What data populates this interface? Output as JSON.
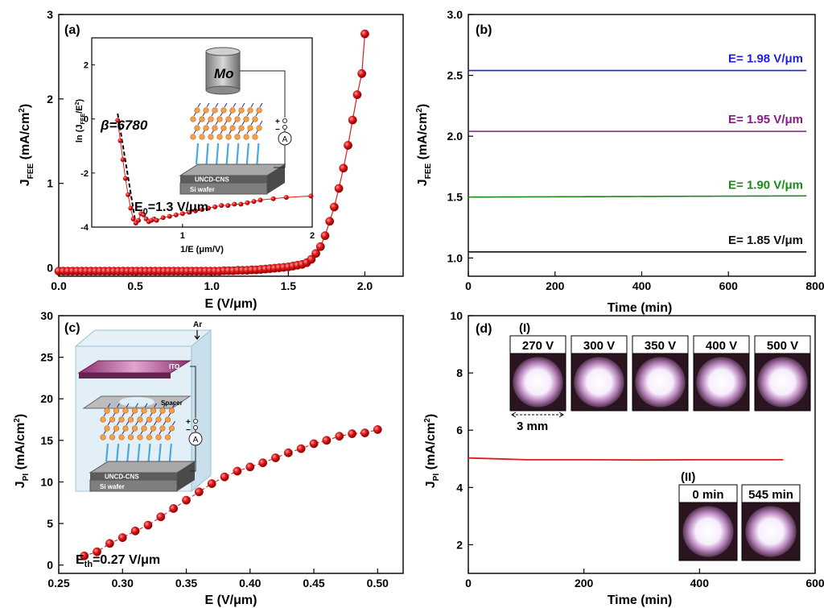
{
  "panel_labels": {
    "a": "(a)",
    "b": "(b)",
    "c": "(c)",
    "d": "(d)"
  },
  "colors": {
    "red": "#e31a1c",
    "blue": "#1f1fd6",
    "purple": "#8a1a8a",
    "green": "#1a8a1a",
    "black": "#111111"
  },
  "chart_data": [
    {
      "type": "scatter",
      "panel": "(a)",
      "xlabel": "E (V/μm)",
      "ylabel_main": "J",
      "ylabel_sub": "FEE",
      "ylabel_unit": " (mA/cm",
      "ylabel_sup": "2",
      "ylabel_end": ")",
      "xlim": [
        0.0,
        2.25
      ],
      "ylim": [
        -0.1,
        3.0
      ],
      "xticks": [
        "0.0",
        "0.5",
        "1.0",
        "1.5",
        "2.0"
      ],
      "yticks": [
        "0",
        "1",
        "2",
        "3"
      ],
      "x": [
        0.0,
        0.03,
        0.06,
        0.09,
        0.12,
        0.15,
        0.18,
        0.21,
        0.24,
        0.27,
        0.3,
        0.33,
        0.36,
        0.39,
        0.42,
        0.45,
        0.48,
        0.51,
        0.54,
        0.57,
        0.6,
        0.63,
        0.66,
        0.69,
        0.72,
        0.75,
        0.78,
        0.81,
        0.84,
        0.87,
        0.9,
        0.93,
        0.96,
        0.99,
        1.02,
        1.05,
        1.08,
        1.11,
        1.14,
        1.17,
        1.2,
        1.23,
        1.26,
        1.29,
        1.32,
        1.35,
        1.38,
        1.41,
        1.44,
        1.47,
        1.5,
        1.53,
        1.56,
        1.59,
        1.62,
        1.65,
        1.68,
        1.71,
        1.74,
        1.77,
        1.8,
        1.83,
        1.86,
        1.89,
        1.92,
        1.95,
        1.98,
        2.0
      ],
      "y": [
        -0.04,
        -0.04,
        -0.04,
        -0.04,
        -0.04,
        -0.04,
        -0.04,
        -0.04,
        -0.04,
        -0.04,
        -0.04,
        -0.04,
        -0.04,
        -0.04,
        -0.04,
        -0.04,
        -0.04,
        -0.04,
        -0.04,
        -0.04,
        -0.04,
        -0.04,
        -0.04,
        -0.04,
        -0.04,
        -0.04,
        -0.04,
        -0.04,
        -0.04,
        -0.04,
        -0.04,
        -0.04,
        -0.04,
        -0.04,
        -0.04,
        -0.04,
        -0.035,
        -0.035,
        -0.035,
        -0.03,
        -0.03,
        -0.03,
        -0.025,
        -0.025,
        -0.02,
        -0.015,
        -0.01,
        -0.005,
        0.0,
        0.005,
        0.01,
        0.02,
        0.03,
        0.04,
        0.06,
        0.1,
        0.17,
        0.25,
        0.38,
        0.55,
        0.72,
        0.94,
        1.18,
        1.45,
        1.75,
        2.05,
        2.3,
        2.77
      ],
      "inset": {
        "xlabel": "1/E (μm/V)",
        "ylabel": "ln (J",
        "ylabel_sub1": "FEE",
        "ylabel_mid": "/E",
        "ylabel_sup": "2",
        "ylabel_end": ")",
        "xticks": [
          "1",
          "2"
        ],
        "yticks": [
          "2",
          "0",
          "-2",
          "-4"
        ],
        "xlim": [
          0.3,
          2.0
        ],
        "ylim": [
          -4,
          3
        ],
        "x": [
          0.5,
          0.52,
          0.54,
          0.56,
          0.58,
          0.6,
          0.62,
          0.64,
          0.66,
          0.68,
          0.7,
          0.72,
          0.74,
          0.76,
          0.78,
          0.8,
          0.85,
          0.9,
          0.95,
          1.0,
          1.05,
          1.1,
          1.15,
          1.2,
          1.25,
          1.3,
          1.35,
          1.4,
          1.45,
          1.5,
          1.55,
          1.6,
          1.7,
          1.8,
          1.99
        ],
        "y": [
          -0.05,
          -0.8,
          -1.5,
          -2.2,
          -2.8,
          -3.3,
          -3.7,
          -3.85,
          -3.75,
          -3.5,
          -3.55,
          -3.7,
          -3.8,
          -3.75,
          -3.7,
          -3.75,
          -3.65,
          -3.6,
          -3.55,
          -3.5,
          -3.45,
          -3.4,
          -3.35,
          -3.3,
          -3.25,
          -3.2,
          -3.2,
          -3.15,
          -3.15,
          -3.1,
          -3.05,
          -3.0,
          -2.95,
          -2.9,
          -2.85
        ],
        "beta_label": "β=6780",
        "e0_label": "E",
        "e0_sub": "0",
        "e0_value": "=1.3 V/μm",
        "mo_label": "Mo",
        "substrate_label": "UNCD-CNS",
        "wafer_label": "Si wafer",
        "ammeter_label": "A",
        "plus": "+",
        "minus": "−"
      }
    },
    {
      "type": "line",
      "panel": "(b)",
      "xlabel": "Time (min)",
      "ylabel_main": "J",
      "ylabel_sub": "FEE",
      "ylabel_unit": " (mA/cm",
      "ylabel_sup": "2",
      "ylabel_end": ")",
      "xlim": [
        0,
        800
      ],
      "ylim": [
        0.85,
        3.0
      ],
      "xticks": [
        "0",
        "200",
        "400",
        "600",
        "800"
      ],
      "yticks": [
        "1.0",
        "1.5",
        "2.0",
        "2.5",
        "3.0"
      ],
      "series": [
        {
          "name": "E= 1.98 V/μm",
          "color": "#1f1fd6",
          "x": [
            0,
            780
          ],
          "y": [
            2.54,
            2.54
          ]
        },
        {
          "name": "E= 1.95 V/μm",
          "color": "#8a1a8a",
          "x": [
            0,
            780
          ],
          "y": [
            2.04,
            2.04
          ]
        },
        {
          "name": "E= 1.90 V/μm",
          "color": "#1a8a1a",
          "x": [
            0,
            780
          ],
          "y": [
            1.5,
            1.51
          ]
        },
        {
          "name": "E= 1.85 V/μm",
          "color": "#111111",
          "x": [
            0,
            780
          ],
          "y": [
            1.05,
            1.05
          ]
        }
      ]
    },
    {
      "type": "scatter",
      "panel": "(c)",
      "xlabel": "E (V/μm)",
      "ylabel_main": "J",
      "ylabel_sub": "PI",
      "ylabel_unit": " (mA/cm",
      "ylabel_sup": "2",
      "ylabel_end": ")",
      "xlim": [
        0.25,
        0.52
      ],
      "ylim": [
        -1,
        30
      ],
      "xticks": [
        "0.25",
        "0.30",
        "0.35",
        "0.40",
        "0.45",
        "0.50"
      ],
      "yticks": [
        "0",
        "5",
        "10",
        "15",
        "20",
        "25",
        "30"
      ],
      "x": [
        0.27,
        0.28,
        0.29,
        0.3,
        0.31,
        0.32,
        0.33,
        0.34,
        0.35,
        0.36,
        0.37,
        0.38,
        0.39,
        0.4,
        0.41,
        0.42,
        0.43,
        0.44,
        0.45,
        0.46,
        0.47,
        0.48,
        0.49,
        0.5
      ],
      "y": [
        1.1,
        1.6,
        2.6,
        3.3,
        4.1,
        4.8,
        5.8,
        6.8,
        7.8,
        8.8,
        9.8,
        10.6,
        11.3,
        11.8,
        12.3,
        12.9,
        13.5,
        14.0,
        14.6,
        15.0,
        15.5,
        15.8,
        15.9,
        16.3
      ],
      "threshold_label": "E",
      "threshold_sub": "th",
      "threshold_value": "=0.27 V/μm",
      "inset": {
        "ar_label": "Ar",
        "ito_label": "ITO",
        "spacer_label": "Spacer",
        "substrate_label": "UNCD-CNS",
        "wafer_label": "Si wafer",
        "ammeter_label": "A",
        "plus": "+",
        "minus": "−"
      }
    },
    {
      "type": "line",
      "panel": "(d)",
      "xlabel": "Time (min)",
      "ylabel_main": "J",
      "ylabel_sub": "PI",
      "ylabel_unit": " (mA/cm",
      "ylabel_sup": "2",
      "ylabel_end": ")",
      "xlim": [
        0,
        600
      ],
      "ylim": [
        1,
        10
      ],
      "xticks": [
        "0",
        "200",
        "400",
        "600"
      ],
      "yticks": [
        "2",
        "4",
        "6",
        "8",
        "10"
      ],
      "series": [
        {
          "color": "#e31a1c",
          "x": [
            0,
            100,
            200,
            300,
            400,
            545
          ],
          "y": [
            5.03,
            4.97,
            4.97,
            4.96,
            4.97,
            4.97
          ]
        }
      ],
      "group_I": {
        "label": "(I)",
        "photos": [
          "270 V",
          "300 V",
          "350 V",
          "400 V",
          "500 V"
        ],
        "scale": "3 mm"
      },
      "group_II": {
        "label": "(II)",
        "photos": [
          "0 min",
          "545 min"
        ]
      }
    }
  ]
}
